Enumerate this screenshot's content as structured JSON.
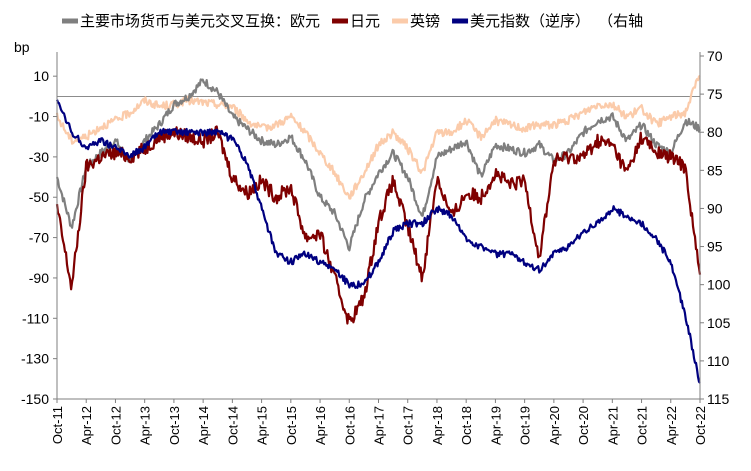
{
  "chart_data": {
    "type": "line",
    "title": "",
    "ylabel_left": "bp",
    "ylabel_right": "",
    "left_axis": {
      "min": -150,
      "max": 20,
      "ticks": [
        10,
        -10,
        -30,
        -50,
        -70,
        -90,
        -110,
        -130,
        -150
      ]
    },
    "right_axis": {
      "min": 70,
      "max": 115,
      "inverted": true,
      "ticks": [
        70,
        75,
        80,
        85,
        90,
        95,
        100,
        105,
        110,
        115
      ]
    },
    "reference_line": 0,
    "x_ticks": [
      "Oct-11",
      "Apr-12",
      "Oct-12",
      "Apr-13",
      "Oct-13",
      "Apr-14",
      "Oct-14",
      "Apr-15",
      "Oct-15",
      "Apr-16",
      "Oct-16",
      "Apr-17",
      "Oct-17",
      "Apr-18",
      "Oct-18",
      "Apr-19",
      "Oct-19",
      "Apr-20",
      "Oct-20",
      "Apr-21",
      "Oct-21",
      "Apr-22",
      "Oct-22"
    ],
    "series": [
      {
        "name": "主要市场货币与美元交叉互换：欧元",
        "color": "#7f7f7f",
        "axis": "left",
        "values": [
          -40,
          -65,
          -35,
          -28,
          -22,
          -32,
          -22,
          -14,
          -4,
          0,
          8,
          2,
          -10,
          -16,
          -22,
          -24,
          -20,
          -32,
          -50,
          -58,
          -75,
          -52,
          -38,
          -28,
          -40,
          -60,
          -30,
          -26,
          -22,
          -40,
          -24,
          -26,
          -28,
          -24,
          -32,
          -28,
          -18,
          -12,
          -10,
          -22,
          -14,
          -24,
          -28,
          -12,
          -16
        ]
      },
      {
        "name": "日元",
        "color": "#7f0000",
        "axis": "left",
        "values": [
          -55,
          -95,
          -35,
          -30,
          -28,
          -30,
          -26,
          -20,
          -18,
          -20,
          -22,
          -18,
          -40,
          -48,
          -42,
          -50,
          -45,
          -70,
          -68,
          -90,
          -112,
          -100,
          -62,
          -42,
          -65,
          -90,
          -40,
          -60,
          -48,
          -50,
          -38,
          -44,
          -42,
          -80,
          -32,
          -30,
          -30,
          -22,
          -24,
          -38,
          -20,
          -28,
          -30,
          -35,
          -90
        ]
      },
      {
        "name": "英镑",
        "color": "#fbcbaa",
        "axis": "left",
        "values": [
          -10,
          -22,
          -20,
          -15,
          -12,
          -8,
          -2,
          -5,
          -4,
          -2,
          -3,
          -4,
          -5,
          -12,
          -16,
          -14,
          -10,
          -18,
          -28,
          -38,
          -50,
          -38,
          -24,
          -18,
          -26,
          -38,
          -18,
          -18,
          -12,
          -20,
          -12,
          -14,
          -16,
          -14,
          -14,
          -12,
          -8,
          -4,
          -4,
          -10,
          -6,
          -14,
          -10,
          -8,
          12
        ]
      },
      {
        "name": "美元指数（逆序）（右轴）",
        "color": "#000080",
        "axis": "right",
        "values": [
          76,
          80,
          82,
          81,
          82,
          83,
          82,
          80,
          80,
          80,
          80,
          80,
          81,
          84,
          90,
          96,
          97,
          96,
          97,
          98,
          100,
          100,
          97,
          93,
          92,
          92,
          90,
          91,
          94,
          95,
          96,
          96,
          97,
          98,
          96,
          95,
          93,
          92,
          90,
          91,
          92,
          94,
          97,
          104,
          113
        ]
      }
    ],
    "legend": [
      {
        "label": "主要市场货币与美元交叉互换：欧元",
        "color": "#7f7f7f"
      },
      {
        "label": "日元",
        "color": "#7f0000"
      },
      {
        "label": "英镑",
        "color": "#fbcbaa"
      },
      {
        "label": "美元指数（逆序）",
        "color": "#000080"
      },
      {
        "label": "（右轴",
        "color": "#000080"
      }
    ]
  }
}
